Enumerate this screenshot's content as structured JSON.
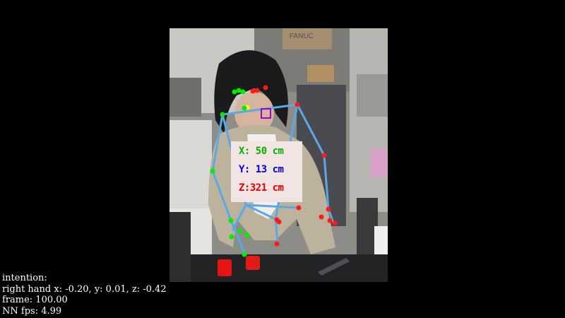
{
  "coordinates": {
    "x_label": "X: 50 cm",
    "y_label": "Y: 13 cm",
    "z_label": "Z:321 cm",
    "x_color": "#00b400",
    "y_color": "#0000e6",
    "z_color": "#e60000"
  },
  "skeleton_colors": {
    "bone": "#5aa9e6",
    "left_joint": "#00ee00",
    "right_joint": "#ff1a1a",
    "neck_joint": "#ffff00",
    "target_marker": "#a000c8"
  },
  "status": {
    "intention_label": "intention:",
    "right_hand_line": "right hand x: -0.20, y: 0.01, z: -0.42",
    "frame_line": "frame: 100.00",
    "fps_line": "NN fps: 4.99"
  },
  "scene": {
    "box_label": "FANUC"
  }
}
